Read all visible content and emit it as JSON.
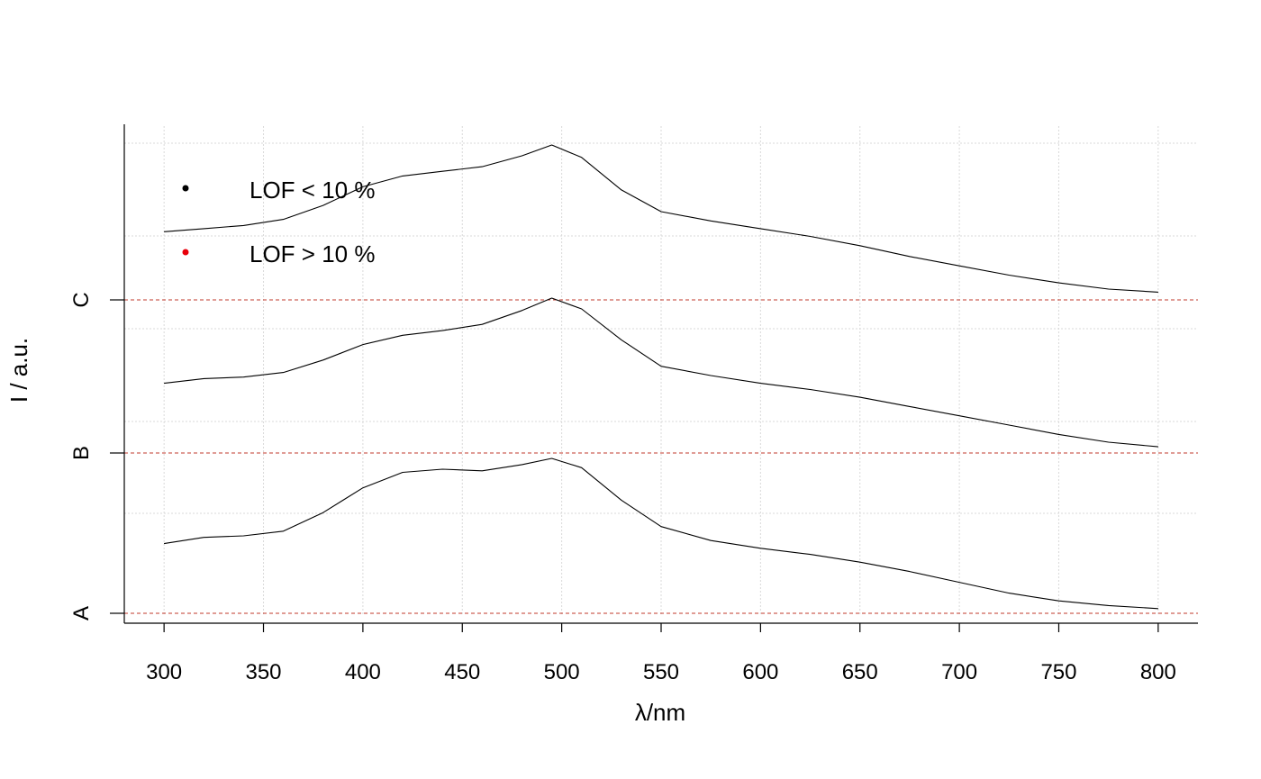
{
  "chart_data": {
    "type": "line",
    "xlabel_symbol": "λ",
    "xlabel_unit": "/nm",
    "ylabel": "I / a.u.",
    "x_ticks": [
      300,
      350,
      400,
      450,
      500,
      550,
      600,
      650,
      700,
      750,
      800
    ],
    "y_tick_labels": [
      "A",
      "B",
      "C"
    ],
    "xlim": [
      280,
      820
    ],
    "grid": true,
    "legend": {
      "placement": "top-left",
      "entries": [
        {
          "label": "LOF < 10 %",
          "color": "#000000"
        },
        {
          "label": "LOF > 10 %",
          "color": "#e8000b"
        }
      ]
    },
    "baseline_color": "#c0392b",
    "series": [
      {
        "baseline": "A",
        "x": [
          300,
          320,
          340,
          360,
          380,
          400,
          420,
          440,
          460,
          480,
          495,
          510,
          530,
          550,
          575,
          600,
          625,
          650,
          675,
          700,
          725,
          750,
          775,
          800
        ],
        "y": [
          0.45,
          0.49,
          0.5,
          0.53,
          0.65,
          0.81,
          0.91,
          0.93,
          0.92,
          0.96,
          1.0,
          0.94,
          0.73,
          0.56,
          0.47,
          0.42,
          0.38,
          0.33,
          0.27,
          0.2,
          0.13,
          0.08,
          0.05,
          0.03
        ]
      },
      {
        "baseline": "B",
        "x": [
          300,
          320,
          340,
          360,
          380,
          400,
          420,
          440,
          460,
          480,
          495,
          510,
          530,
          550,
          575,
          600,
          625,
          650,
          675,
          700,
          725,
          750,
          775,
          800
        ],
        "y": [
          0.45,
          0.48,
          0.49,
          0.52,
          0.6,
          0.7,
          0.76,
          0.79,
          0.83,
          0.92,
          1.0,
          0.93,
          0.73,
          0.56,
          0.5,
          0.45,
          0.41,
          0.36,
          0.3,
          0.24,
          0.18,
          0.12,
          0.07,
          0.04
        ]
      },
      {
        "baseline": "C",
        "x": [
          300,
          320,
          340,
          360,
          380,
          400,
          420,
          440,
          460,
          480,
          495,
          510,
          530,
          550,
          575,
          600,
          625,
          650,
          675,
          700,
          725,
          750,
          775,
          800
        ],
        "y": [
          0.44,
          0.46,
          0.48,
          0.52,
          0.61,
          0.73,
          0.8,
          0.83,
          0.86,
          0.93,
          1.0,
          0.92,
          0.71,
          0.57,
          0.51,
          0.46,
          0.41,
          0.35,
          0.28,
          0.22,
          0.16,
          0.11,
          0.07,
          0.05
        ]
      }
    ]
  }
}
